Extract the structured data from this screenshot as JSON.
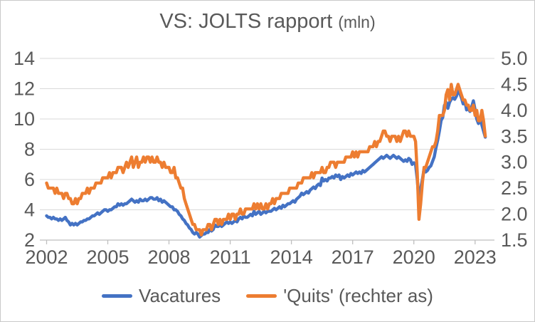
{
  "title": {
    "text": "VS: JOLTS rapport",
    "unit": "(mln)",
    "color": "#595959"
  },
  "chart_data": {
    "type": "line",
    "title": "VS: JOLTS rapport (mln)",
    "grid": "horizontal",
    "legend_position": "bottom",
    "colors": {
      "grid": "#d9d9d9",
      "axis_line": "#bfbfbf",
      "text": "#595959"
    },
    "x_axis": {
      "start_year": 2002,
      "start_month": 1,
      "frequency": "monthly",
      "min": 2001.67,
      "max": 2023.95,
      "ticks": [
        2002,
        2005,
        2008,
        2011,
        2014,
        2017,
        2020,
        2023
      ],
      "tick_labels": [
        "2002",
        "2005",
        "2008",
        "2011",
        "2014",
        "2017",
        "2020",
        "2023"
      ]
    },
    "left_axis": {
      "min": 2,
      "max": 14,
      "ticks": [
        2,
        4,
        6,
        8,
        10,
        12,
        14
      ],
      "tick_labels": [
        "2",
        "4",
        "6",
        "8",
        "10",
        "12",
        "14"
      ],
      "applies_to": "Vacatures"
    },
    "right_axis": {
      "min": 1.5,
      "max": 5.0,
      "ticks": [
        1.5,
        2.0,
        2.5,
        3.0,
        3.5,
        4.0,
        4.5,
        5.0
      ],
      "tick_labels": [
        "1.5",
        "2.0",
        "2.5",
        "3.0",
        "3.5",
        "4.0",
        "4.5",
        "5.0"
      ],
      "applies_to": "'Quits' (rechter as)"
    },
    "series": [
      {
        "name": "Vacatures",
        "axis": "left",
        "color": "#4472C4",
        "unit": "mln",
        "values": [
          3.6,
          3.5,
          3.5,
          3.4,
          3.5,
          3.4,
          3.4,
          3.3,
          3.4,
          3.3,
          3.4,
          3.5,
          3.3,
          3.2,
          3.0,
          3.1,
          3.0,
          3.1,
          3.0,
          3.1,
          3.2,
          3.2,
          3.3,
          3.3,
          3.4,
          3.4,
          3.5,
          3.6,
          3.6,
          3.7,
          3.8,
          3.7,
          3.8,
          3.9,
          4.0,
          4.0,
          3.9,
          4.0,
          4.0,
          4.1,
          4.2,
          4.2,
          4.4,
          4.3,
          4.4,
          4.3,
          4.4,
          4.4,
          4.5,
          4.6,
          4.7,
          4.6,
          4.5,
          4.6,
          4.5,
          4.7,
          4.6,
          4.6,
          4.7,
          4.6,
          4.7,
          4.8,
          4.8,
          4.7,
          4.7,
          4.8,
          4.6,
          4.7,
          4.5,
          4.6,
          4.5,
          4.4,
          4.3,
          4.2,
          4.2,
          4.0,
          4.0,
          3.9,
          3.7,
          3.6,
          3.4,
          3.3,
          3.1,
          3.0,
          2.8,
          2.7,
          2.5,
          2.4,
          2.5,
          2.4,
          2.2,
          2.3,
          2.4,
          2.4,
          2.5,
          2.5,
          2.7,
          2.6,
          2.7,
          3.0,
          2.9,
          2.9,
          3.0,
          2.9,
          3.0,
          3.1,
          3.2,
          3.1,
          3.2,
          3.1,
          3.2,
          3.3,
          3.2,
          3.4,
          3.5,
          3.4,
          3.6,
          3.5,
          3.5,
          3.6,
          3.7,
          3.6,
          3.9,
          3.7,
          3.8,
          3.9,
          3.7,
          3.8,
          3.9,
          3.8,
          3.9,
          3.9,
          3.9,
          4.0,
          4.1,
          4.0,
          4.1,
          4.2,
          4.1,
          4.3,
          4.2,
          4.3,
          4.4,
          4.4,
          4.5,
          4.6,
          4.5,
          4.7,
          4.8,
          4.9,
          5.1,
          5.0,
          5.1,
          5.2,
          5.1,
          5.3,
          5.4,
          5.5,
          5.4,
          5.6,
          5.7,
          5.6,
          6.1,
          5.9,
          6.0,
          5.9,
          6.1,
          6.1,
          6.2,
          6.1,
          6.3,
          6.2,
          6.3,
          6.0,
          6.2,
          6.1,
          6.2,
          6.3,
          6.2,
          6.4,
          6.3,
          6.4,
          6.5,
          6.4,
          6.5,
          6.4,
          6.6,
          6.5,
          6.6,
          6.7,
          6.8,
          6.9,
          7.0,
          7.1,
          7.2,
          7.3,
          7.4,
          7.5,
          7.4,
          7.5,
          7.6,
          7.5,
          7.4,
          7.5,
          7.6,
          7.5,
          7.4,
          7.5,
          7.4,
          7.3,
          7.2,
          7.3,
          7.2,
          7.4,
          7.3,
          7.0,
          7.1,
          7.0,
          6.0,
          4.6,
          5.4,
          6.0,
          6.7,
          6.5,
          6.6,
          6.8,
          6.9,
          7.2,
          7.5,
          8.1,
          8.6,
          9.2,
          9.9,
          10.1,
          10.9,
          11.1,
          10.7,
          11.1,
          11.3,
          11.4,
          11.3,
          11.5,
          11.9,
          11.7,
          11.4,
          11.0,
          11.2,
          10.6,
          10.7,
          10.5,
          10.8,
          11.2,
          10.6,
          10.0,
          9.7,
          10.1,
          9.6,
          9.2,
          8.8
        ]
      },
      {
        "name": "'Quits' (rechter as)",
        "axis": "right",
        "color": "#ED7D31",
        "unit": "mln",
        "values": [
          2.6,
          2.5,
          2.5,
          2.5,
          2.5,
          2.4,
          2.5,
          2.4,
          2.4,
          2.4,
          2.3,
          2.4,
          2.4,
          2.3,
          2.3,
          2.2,
          2.2,
          2.3,
          2.2,
          2.3,
          2.3,
          2.4,
          2.4,
          2.4,
          2.5,
          2.4,
          2.5,
          2.5,
          2.5,
          2.6,
          2.6,
          2.6,
          2.6,
          2.7,
          2.7,
          2.7,
          2.7,
          2.8,
          2.7,
          2.8,
          2.8,
          2.8,
          2.9,
          2.9,
          2.9,
          2.8,
          2.9,
          3.0,
          2.9,
          3.0,
          3.1,
          2.9,
          3.0,
          3.1,
          2.9,
          3.0,
          3.0,
          3.1,
          3.0,
          3.1,
          3.1,
          3.0,
          3.1,
          3.0,
          3.0,
          3.1,
          3.0,
          3.0,
          2.9,
          3.0,
          2.9,
          2.9,
          2.9,
          2.8,
          2.8,
          2.9,
          2.7,
          2.7,
          2.6,
          2.5,
          2.5,
          2.3,
          2.2,
          2.1,
          2.0,
          1.9,
          1.8,
          1.8,
          1.7,
          1.7,
          1.7,
          1.6,
          1.7,
          1.7,
          1.7,
          1.8,
          1.8,
          1.7,
          1.8,
          1.9,
          1.9,
          1.8,
          1.9,
          1.8,
          1.9,
          1.9,
          1.9,
          2.0,
          1.9,
          2.0,
          2.0,
          1.9,
          2.0,
          2.0,
          2.1,
          2.0,
          2.0,
          2.1,
          2.1,
          2.1,
          2.1,
          2.1,
          2.2,
          2.1,
          2.2,
          2.1,
          2.2,
          2.1,
          2.1,
          2.2,
          2.1,
          2.2,
          2.2,
          2.3,
          2.2,
          2.3,
          2.3,
          2.3,
          2.4,
          2.4,
          2.4,
          2.4,
          2.4,
          2.5,
          2.5,
          2.5,
          2.5,
          2.5,
          2.6,
          2.6,
          2.6,
          2.7,
          2.7,
          2.7,
          2.7,
          2.7,
          2.8,
          2.7,
          2.8,
          2.8,
          2.8,
          2.8,
          2.9,
          2.8,
          2.8,
          2.9,
          2.9,
          3.0,
          3.0,
          3.0,
          2.9,
          3.0,
          3.0,
          3.0,
          3.0,
          3.0,
          3.1,
          3.1,
          3.1,
          3.1,
          3.2,
          3.1,
          3.2,
          3.1,
          3.2,
          3.2,
          3.2,
          3.2,
          3.2,
          3.2,
          3.3,
          3.3,
          3.3,
          3.4,
          3.3,
          3.4,
          3.4,
          3.5,
          3.6,
          3.6,
          3.5,
          3.5,
          3.4,
          3.5,
          3.5,
          3.5,
          3.4,
          3.5,
          3.4,
          3.5,
          3.6,
          3.6,
          3.5,
          3.6,
          3.5,
          3.5,
          3.5,
          3.4,
          2.8,
          1.9,
          2.2,
          2.6,
          2.9,
          2.9,
          3.0,
          3.1,
          3.2,
          3.3,
          3.3,
          3.4,
          3.6,
          3.9,
          3.9,
          3.9,
          4.0,
          4.3,
          4.4,
          4.2,
          4.5,
          4.3,
          4.3,
          4.4,
          4.5,
          4.4,
          4.3,
          4.2,
          4.2,
          4.1,
          4.1,
          4.0,
          4.0,
          4.1,
          3.9,
          4.0,
          3.8,
          3.8,
          4.0,
          3.8,
          3.5
        ]
      }
    ]
  }
}
